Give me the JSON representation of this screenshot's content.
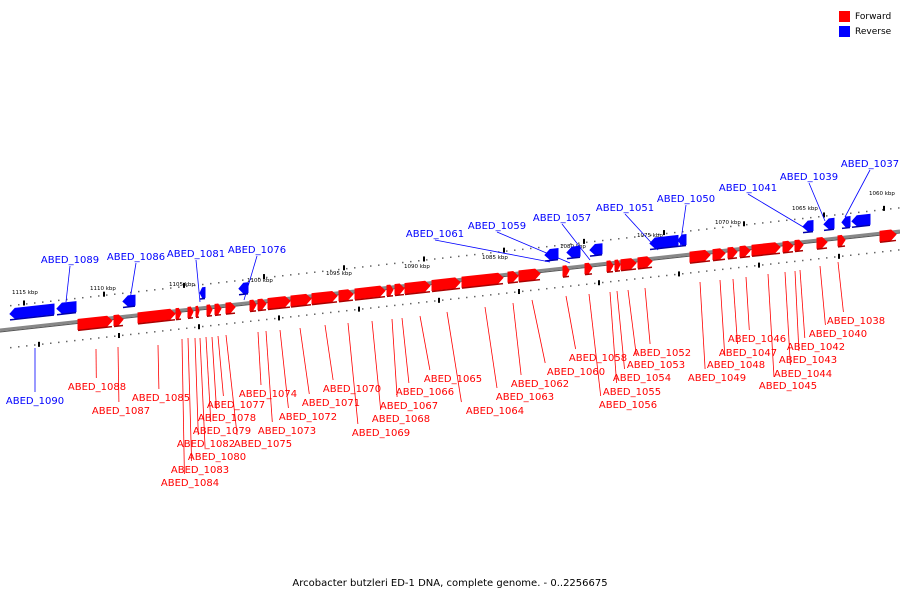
{
  "legend": {
    "forward_label": "Forward",
    "reverse_label": "Reverse",
    "forward_color": "#ff0000",
    "reverse_color": "#0000ff"
  },
  "caption": "Arcobacter butzleri ED-1 DNA, complete genome. - 0..2256675",
  "scale_labels": [
    "1115 kbp",
    "1110 kbp",
    "1105 kbp",
    "1100 kbp",
    "1095 kbp",
    "1090 kbp",
    "1085 kbp",
    "1080 kbp",
    "1075 kbp",
    "1070 kbp",
    "1065 kbp",
    "1060 kbp"
  ],
  "reverse_genes": [
    "ABED_1090",
    "ABED_1089",
    "ABED_1086",
    "ABED_1081",
    "ABED_1076",
    "ABED_1061",
    "ABED_1059",
    "ABED_1057",
    "ABED_1051",
    "ABED_1050",
    "ABED_1041",
    "ABED_1039",
    "ABED_1037"
  ],
  "forward_genes": [
    "ABED_1088",
    "ABED_1087",
    "ABED_1085",
    "ABED_1084",
    "ABED_1083",
    "ABED_1082",
    "ABED_1080",
    "ABED_1079",
    "ABED_1078",
    "ABED_1077",
    "ABED_1075",
    "ABED_1074",
    "ABED_1073",
    "ABED_1072",
    "ABED_1071",
    "ABED_1070",
    "ABED_1069",
    "ABED_1068",
    "ABED_1067",
    "ABED_1066",
    "ABED_1065",
    "ABED_1064",
    "ABED_1063",
    "ABED_1062",
    "ABED_1060",
    "ABED_1058",
    "ABED_1056",
    "ABED_1055",
    "ABED_1054",
    "ABED_1053",
    "ABED_1052",
    "ABED_1049",
    "ABED_1048",
    "ABED_1047",
    "ABED_1046",
    "ABED_1045",
    "ABED_1044",
    "ABED_1043",
    "ABED_1042",
    "ABED_1040",
    "ABED_1038"
  ]
}
